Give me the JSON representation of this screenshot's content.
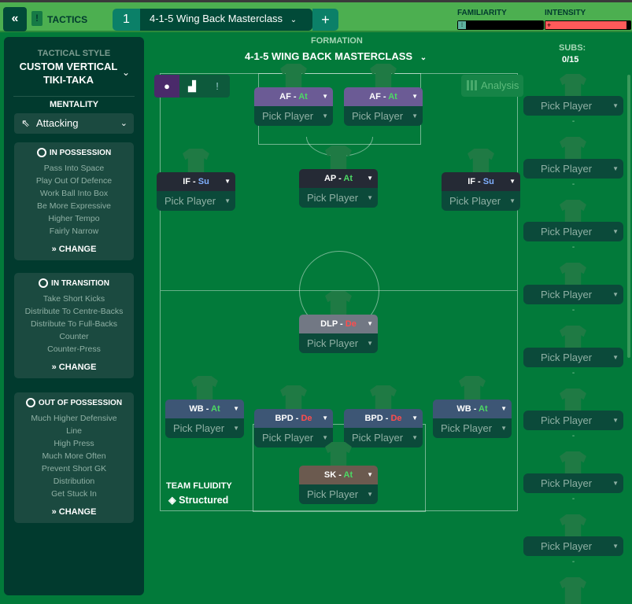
{
  "topbar": {
    "back_icon": "double-chevron-left",
    "tactics_label": "TACTICS",
    "tactic_slot": "1",
    "tactic_name": "4-1-5 Wing Back Masterclass",
    "add": "+",
    "familiarity_label": "FAMILIARITY",
    "intensity_label": "INTENSITY",
    "familiarity_pct": 8,
    "intensity_pct": 95
  },
  "left": {
    "style_label": "TACTICAL STYLE",
    "style_value": "CUSTOM VERTICAL TIKI-TAKA",
    "mentality_label": "MENTALITY",
    "mentality_value": "Attacking",
    "sections": [
      {
        "title": "IN POSSESSION",
        "items": [
          "Pass Into Space",
          "Play Out Of Defence",
          "Work Ball Into Box",
          "Be More Expressive",
          "Higher Tempo",
          "Fairly Narrow"
        ],
        "change": "CHANGE"
      },
      {
        "title": "IN TRANSITION",
        "items": [
          "Take Short Kicks",
          "Distribute To Centre-Backs",
          "Distribute To Full-Backs",
          "Counter",
          "Counter-Press"
        ],
        "change": "CHANGE"
      },
      {
        "title": "OUT OF POSSESSION",
        "items": [
          "Much Higher Defensive",
          "Line",
          "High Press",
          "Much More Often",
          "Prevent Short GK",
          "Distribution",
          "Get Stuck In"
        ],
        "change": "CHANGE"
      }
    ]
  },
  "formation": {
    "label": "FORMATION",
    "name": "4-1-5 WING BACK MASTERCLASS"
  },
  "subs": {
    "label": "SUBS:",
    "count": "0/15",
    "pick": "Pick Player",
    "dash": "-"
  },
  "analysis": "Analysis",
  "fluidity": {
    "label": "TEAM FLUIDITY",
    "value": "Structured"
  },
  "colors": {
    "attack": "#4cd964",
    "support": "#7fb0ff",
    "defend": "#ff4d4d",
    "topbar": "#4caf50",
    "pitch": "#027a3a"
  },
  "players": [
    {
      "role": "AF",
      "duty": "At",
      "pick": "Pick Player"
    },
    {
      "role": "AF",
      "duty": "At",
      "pick": "Pick Player"
    },
    {
      "role": "IF",
      "duty": "Su",
      "pick": "Pick Player"
    },
    {
      "role": "AP",
      "duty": "At",
      "pick": "Pick Player"
    },
    {
      "role": "IF",
      "duty": "Su",
      "pick": "Pick Player"
    },
    {
      "role": "DLP",
      "duty": "De",
      "pick": "Pick Player"
    },
    {
      "role": "WB",
      "duty": "At",
      "pick": "Pick Player"
    },
    {
      "role": "BPD",
      "duty": "De",
      "pick": "Pick Player"
    },
    {
      "role": "BPD",
      "duty": "De",
      "pick": "Pick Player"
    },
    {
      "role": "WB",
      "duty": "At",
      "pick": "Pick Player"
    },
    {
      "role": "SK",
      "duty": "At",
      "pick": "Pick Player"
    }
  ]
}
